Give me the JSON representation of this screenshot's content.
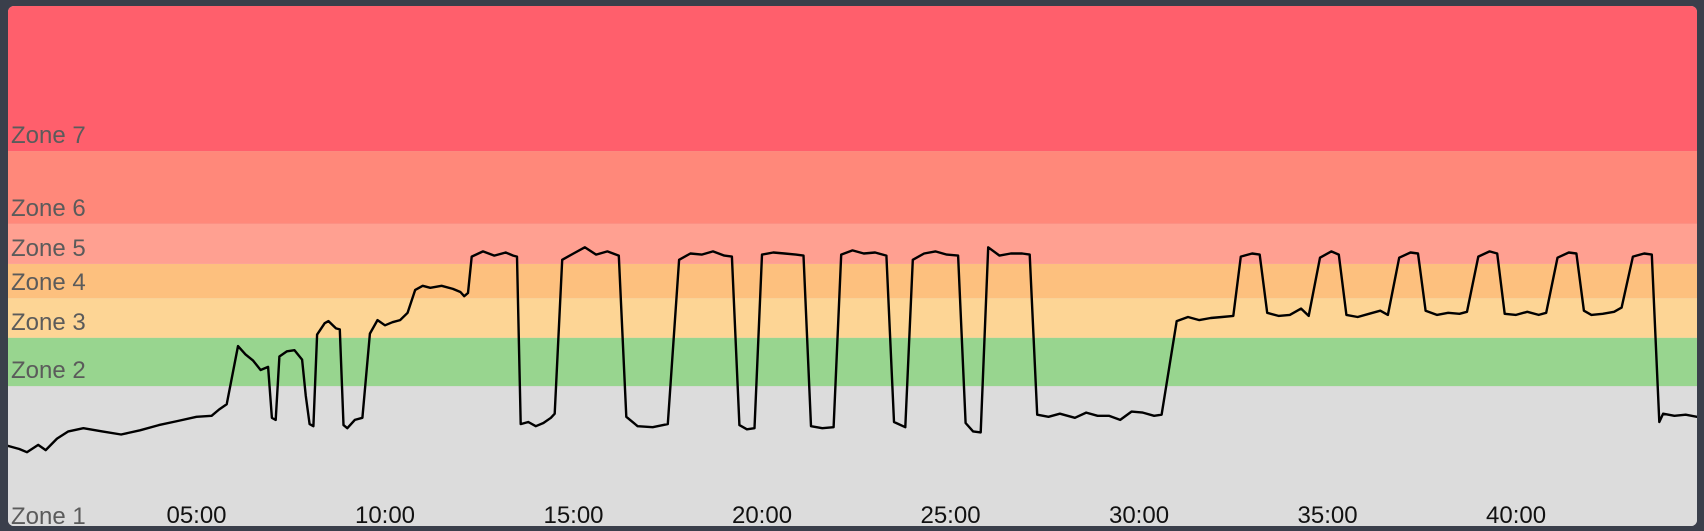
{
  "chart_data": {
    "type": "line",
    "title": "",
    "xlabel": "",
    "ylabel": "",
    "x_unit": "mm:ss",
    "xlim": [
      0,
      44.8
    ],
    "ylim": [
      0,
      100
    ],
    "grid": false,
    "legend": "none",
    "x_tick_labels": [
      "05:00",
      "10:00",
      "15:00",
      "20:00",
      "25:00",
      "30:00",
      "35:00",
      "40:00"
    ],
    "x_tick_values": [
      5,
      10,
      15,
      20,
      25,
      30,
      35,
      40
    ],
    "zones": [
      {
        "name": "Zone 1",
        "from": 0,
        "to": 26.9,
        "color": "#dcdcdc"
      },
      {
        "name": "Zone 2",
        "from": 26.9,
        "to": 36.2,
        "color": "#98d58f"
      },
      {
        "name": "Zone 3",
        "from": 36.2,
        "to": 43.8,
        "color": "#fdd595"
      },
      {
        "name": "Zone 4",
        "from": 43.8,
        "to": 50.4,
        "color": "#fdc07e"
      },
      {
        "name": "Zone 5",
        "from": 50.4,
        "to": 58.1,
        "color": "#ffa091"
      },
      {
        "name": "Zone 6",
        "from": 58.1,
        "to": 72.1,
        "color": "#ff887a"
      },
      {
        "name": "Zone 7",
        "from": 72.1,
        "to": 100,
        "color": "#ff5f6c"
      }
    ],
    "series": [
      {
        "values": [
          [
            0.0,
            15.4
          ],
          [
            0.3,
            14.8
          ],
          [
            0.5,
            14.2
          ],
          [
            0.8,
            15.6
          ],
          [
            1.0,
            14.6
          ],
          [
            1.3,
            16.8
          ],
          [
            1.6,
            18.2
          ],
          [
            2.0,
            18.8
          ],
          [
            2.5,
            18.2
          ],
          [
            3.0,
            17.6
          ],
          [
            3.5,
            18.4
          ],
          [
            4.0,
            19.4
          ],
          [
            4.5,
            20.2
          ],
          [
            5.0,
            21.0
          ],
          [
            5.4,
            21.2
          ],
          [
            5.6,
            22.4
          ],
          [
            5.8,
            23.4
          ],
          [
            6.1,
            34.6
          ],
          [
            6.3,
            33.0
          ],
          [
            6.5,
            31.8
          ],
          [
            6.7,
            30.0
          ],
          [
            6.9,
            30.6
          ],
          [
            7.0,
            20.8
          ],
          [
            7.1,
            20.4
          ],
          [
            7.2,
            32.6
          ],
          [
            7.4,
            33.6
          ],
          [
            7.6,
            33.8
          ],
          [
            7.8,
            32.0
          ],
          [
            7.9,
            25.0
          ],
          [
            8.0,
            19.6
          ],
          [
            8.1,
            19.2
          ],
          [
            8.2,
            36.8
          ],
          [
            8.4,
            39.0
          ],
          [
            8.5,
            39.4
          ],
          [
            8.7,
            38.0
          ],
          [
            8.8,
            37.8
          ],
          [
            8.9,
            19.4
          ],
          [
            9.0,
            18.8
          ],
          [
            9.2,
            20.4
          ],
          [
            9.4,
            20.8
          ],
          [
            9.6,
            37.0
          ],
          [
            9.8,
            39.6
          ],
          [
            10.0,
            38.6
          ],
          [
            10.2,
            39.2
          ],
          [
            10.4,
            39.6
          ],
          [
            10.6,
            41.0
          ],
          [
            10.8,
            45.4
          ],
          [
            11.0,
            46.2
          ],
          [
            11.2,
            45.8
          ],
          [
            11.5,
            46.2
          ],
          [
            11.8,
            45.6
          ],
          [
            12.0,
            45.0
          ],
          [
            12.1,
            44.2
          ],
          [
            12.2,
            44.8
          ],
          [
            12.3,
            51.8
          ],
          [
            12.6,
            52.8
          ],
          [
            12.9,
            52.0
          ],
          [
            13.2,
            52.6
          ],
          [
            13.4,
            52.0
          ],
          [
            13.5,
            51.8
          ],
          [
            13.6,
            19.6
          ],
          [
            13.8,
            20.0
          ],
          [
            14.0,
            19.2
          ],
          [
            14.2,
            19.8
          ],
          [
            14.4,
            20.8
          ],
          [
            14.5,
            21.6
          ],
          [
            14.7,
            51.2
          ],
          [
            15.0,
            52.4
          ],
          [
            15.3,
            53.6
          ],
          [
            15.6,
            52.2
          ],
          [
            15.9,
            52.8
          ],
          [
            16.2,
            52.0
          ],
          [
            16.4,
            21.0
          ],
          [
            16.7,
            19.2
          ],
          [
            17.1,
            19.0
          ],
          [
            17.5,
            19.6
          ],
          [
            17.8,
            51.2
          ],
          [
            18.1,
            52.4
          ],
          [
            18.4,
            52.2
          ],
          [
            18.7,
            52.8
          ],
          [
            19.0,
            52.0
          ],
          [
            19.2,
            51.8
          ],
          [
            19.4,
            19.4
          ],
          [
            19.6,
            18.6
          ],
          [
            19.8,
            18.8
          ],
          [
            20.0,
            52.2
          ],
          [
            20.3,
            52.6
          ],
          [
            20.6,
            52.4
          ],
          [
            20.9,
            52.2
          ],
          [
            21.1,
            52.0
          ],
          [
            21.3,
            19.2
          ],
          [
            21.6,
            18.8
          ],
          [
            21.9,
            19.0
          ],
          [
            22.1,
            52.2
          ],
          [
            22.4,
            53.0
          ],
          [
            22.7,
            52.4
          ],
          [
            23.0,
            52.6
          ],
          [
            23.3,
            52.0
          ],
          [
            23.5,
            20.0
          ],
          [
            23.8,
            19.0
          ],
          [
            24.0,
            51.2
          ],
          [
            24.3,
            52.4
          ],
          [
            24.6,
            52.8
          ],
          [
            24.9,
            52.2
          ],
          [
            25.2,
            52.0
          ],
          [
            25.4,
            19.8
          ],
          [
            25.6,
            18.2
          ],
          [
            25.8,
            18.0
          ],
          [
            26.0,
            53.6
          ],
          [
            26.3,
            52.0
          ],
          [
            26.6,
            52.4
          ],
          [
            26.9,
            52.4
          ],
          [
            27.1,
            52.2
          ],
          [
            27.3,
            21.4
          ],
          [
            27.6,
            21.0
          ],
          [
            27.9,
            21.6
          ],
          [
            28.3,
            20.8
          ],
          [
            28.6,
            21.8
          ],
          [
            28.9,
            21.2
          ],
          [
            29.2,
            21.2
          ],
          [
            29.5,
            20.4
          ],
          [
            29.8,
            22.0
          ],
          [
            30.1,
            21.8
          ],
          [
            30.4,
            21.2
          ],
          [
            30.6,
            21.4
          ],
          [
            31.0,
            39.4
          ],
          [
            31.3,
            40.2
          ],
          [
            31.6,
            39.6
          ],
          [
            31.9,
            40.0
          ],
          [
            32.2,
            40.2
          ],
          [
            32.5,
            40.4
          ],
          [
            32.7,
            51.8
          ],
          [
            33.0,
            52.4
          ],
          [
            33.2,
            52.2
          ],
          [
            33.4,
            41.0
          ],
          [
            33.7,
            40.4
          ],
          [
            34.0,
            40.6
          ],
          [
            34.3,
            41.8
          ],
          [
            34.5,
            40.4
          ],
          [
            34.8,
            51.6
          ],
          [
            35.1,
            52.8
          ],
          [
            35.3,
            52.2
          ],
          [
            35.5,
            40.6
          ],
          [
            35.8,
            40.2
          ],
          [
            36.1,
            40.8
          ],
          [
            36.4,
            41.4
          ],
          [
            36.6,
            40.6
          ],
          [
            36.9,
            51.6
          ],
          [
            37.2,
            52.6
          ],
          [
            37.4,
            52.4
          ],
          [
            37.6,
            41.4
          ],
          [
            37.9,
            40.6
          ],
          [
            38.2,
            41.0
          ],
          [
            38.5,
            40.8
          ],
          [
            38.7,
            41.2
          ],
          [
            39.0,
            51.8
          ],
          [
            39.3,
            52.8
          ],
          [
            39.5,
            52.4
          ],
          [
            39.7,
            40.8
          ],
          [
            40.0,
            40.6
          ],
          [
            40.3,
            41.2
          ],
          [
            40.6,
            40.6
          ],
          [
            40.8,
            41.0
          ],
          [
            41.1,
            51.6
          ],
          [
            41.4,
            52.6
          ],
          [
            41.6,
            52.4
          ],
          [
            41.8,
            41.4
          ],
          [
            42.0,
            40.6
          ],
          [
            42.3,
            40.8
          ],
          [
            42.6,
            41.2
          ],
          [
            42.8,
            42.0
          ],
          [
            43.1,
            51.8
          ],
          [
            43.4,
            52.4
          ],
          [
            43.6,
            52.2
          ],
          [
            43.8,
            20.0
          ],
          [
            43.9,
            21.6
          ],
          [
            44.2,
            21.2
          ],
          [
            44.5,
            21.4
          ],
          [
            44.8,
            21.0
          ]
        ]
      }
    ]
  }
}
